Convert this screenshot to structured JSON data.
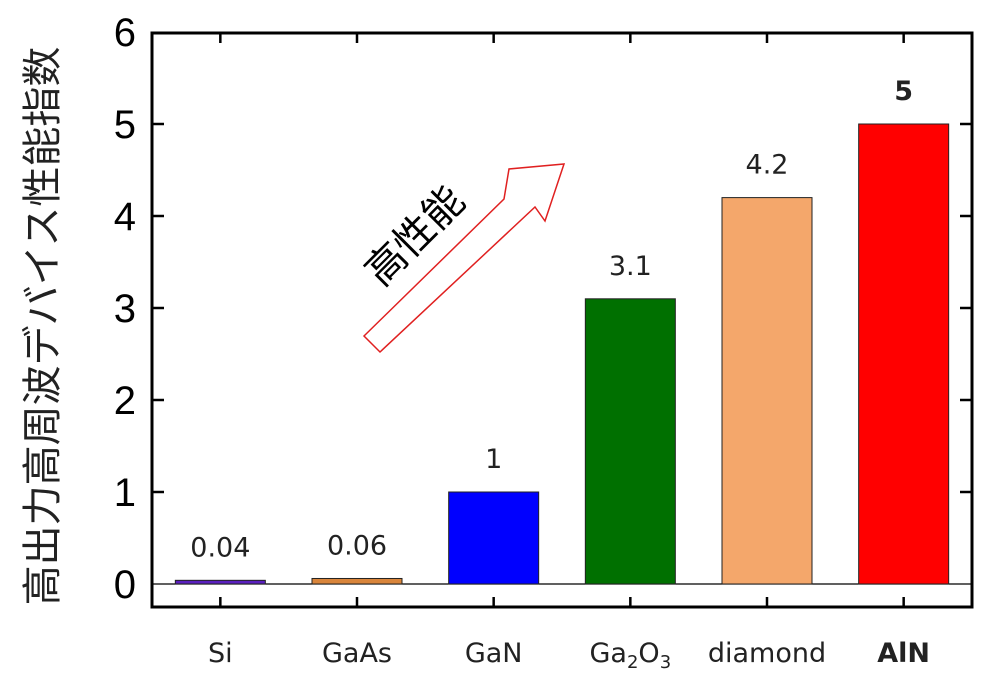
{
  "chart_data": {
    "type": "bar",
    "ylabel": "高出力高周波デバイス性能指数",
    "ylim": [
      0,
      6
    ],
    "yticks": [
      "0",
      "1",
      "2",
      "3",
      "4",
      "5",
      "6"
    ],
    "categories": [
      "Si",
      "GaAs",
      "GaN",
      "Ga2O3",
      "diamond",
      "AlN"
    ],
    "values": [
      0.04,
      0.06,
      1,
      3.1,
      4.2,
      5
    ],
    "value_labels": [
      "0.04",
      "0.06",
      "1",
      "3.1",
      "4.2",
      "5"
    ],
    "colors": [
      "#5a1fbf",
      "#d9853b",
      "#0000ff",
      "#007000",
      "#f4a76b",
      "#ff0000"
    ],
    "highlight_index": 5,
    "highlight_color": "#ff0000",
    "annotation": {
      "text": "高性能",
      "arrow_color": "#e02020"
    },
    "grid": false
  }
}
